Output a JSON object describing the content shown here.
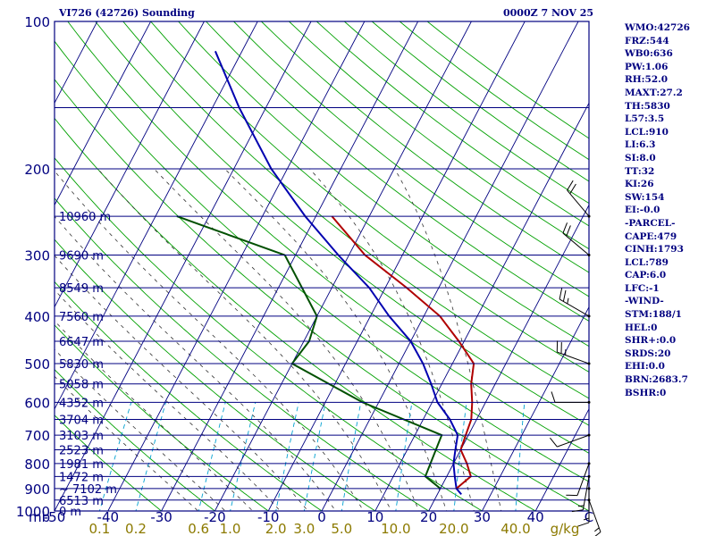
{
  "header": {
    "station": "VI726 (42726) Sounding",
    "time": "0000Z  7 NOV 25"
  },
  "indices": [
    "WMO:42726",
    "FRZ:544",
    "WB0:636",
    "PW:1.06",
    "RH:52.0",
    "MAXT:27.2",
    "TH:5830",
    "L57:3.5",
    "LCL:910",
    "LI:6.3",
    "SI:8.0",
    "TT:32",
    "KI:26",
    "SW:154",
    "EI:-0.0",
    "-PARCEL-",
    "CAPE:479",
    "CINH:1793",
    "LCL:789",
    "CAP:6.0",
    "LFC:-1",
    "-WIND-",
    "STM:188/1",
    "HEL:0",
    "SHR+:0.0",
    "SRDS:20",
    "EHI:0.0",
    "BRN:2683.7",
    "BSHR:0"
  ],
  "colors": {
    "frame": "#000080",
    "isobar": "#000080",
    "isotherm": "#000080",
    "dry_adiabat": "#00a000",
    "moist_adiabat": "#333333",
    "mixing_ratio": "#00a0d0",
    "temperature": "#0000b0",
    "parcel": "#b00000",
    "dewpoint": "#005000",
    "wind_barb": "#000000",
    "label": "#000080",
    "mixing_label": "#8c7a00"
  },
  "chart_data": {
    "type": "line",
    "title": "VI726 (42726) Sounding",
    "subtitle": "0000Z  7 NOV 25",
    "xlabel": "C",
    "ylabel": "mb",
    "xlim": [
      -50,
      50
    ],
    "ylim": [
      1000,
      100
    ],
    "y_scale": "log",
    "pressure_ticks": [
      100,
      200,
      300,
      400,
      500,
      600,
      700,
      800,
      900,
      1000
    ],
    "temperature_ticks": [
      -50,
      -40,
      -30,
      -20,
      -10,
      0,
      10,
      20,
      30,
      40
    ],
    "x_tick_labels": [
      "-50",
      "-40",
      "-30",
      "-20",
      "-10",
      "0",
      "10",
      "20",
      "30",
      "40",
      "C"
    ],
    "mixing_ratio_labels": [
      {
        "label": "0.1",
        "w": 0.1
      },
      {
        "label": "0.2",
        "w": 0.2
      },
      {
        "label": "0.6",
        "w": 0.6
      },
      {
        "label": "1.0",
        "w": 1.0
      },
      {
        "label": "2.0",
        "w": 2.0
      },
      {
        "label": "3.0",
        "w": 3.0
      },
      {
        "label": "5.0",
        "w": 5.0
      },
      {
        "label": "10.0",
        "w": 10.0
      },
      {
        "label": "20.0",
        "w": 20.0
      },
      {
        "label": "40.0",
        "w": 40.0
      }
    ],
    "mixing_ratio_unit": "g/kg",
    "height_labels": [
      {
        "p": 250,
        "label": "10960 m"
      },
      {
        "p": 300,
        "label": "9690 m"
      },
      {
        "p": 350,
        "label": "8549 m"
      },
      {
        "p": 400,
        "label": "7560 m"
      },
      {
        "p": 450,
        "label": "6647 m"
      },
      {
        "p": 500,
        "label": "5830 m"
      },
      {
        "p": 550,
        "label": "5058 m"
      },
      {
        "p": 600,
        "label": "4352 m"
      },
      {
        "p": 650,
        "label": "3704 m"
      },
      {
        "p": 700,
        "label": "3103 m"
      },
      {
        "p": 750,
        "label": "2523 m"
      },
      {
        "p": 800,
        "label": "1981 m"
      },
      {
        "p": 850,
        "label": "1472 m"
      },
      {
        "p": 900,
        "label": "~ 7102 m"
      },
      {
        "p": 950,
        "label": "6513 m"
      },
      {
        "p": 1000,
        "label": "0 m"
      }
    ],
    "series": [
      {
        "key": "temperature",
        "points": [
          [
            925,
            24.5
          ],
          [
            900,
            23.0
          ],
          [
            850,
            21.5
          ],
          [
            800,
            20.0
          ],
          [
            750,
            19.0
          ],
          [
            700,
            18.0
          ],
          [
            650,
            15.0
          ],
          [
            600,
            11.0
          ],
          [
            550,
            8.0
          ],
          [
            500,
            4.5
          ],
          [
            450,
            0.0
          ],
          [
            400,
            -6.5
          ],
          [
            350,
            -13.0
          ],
          [
            300,
            -22.0
          ],
          [
            250,
            -32.0
          ],
          [
            200,
            -43.0
          ],
          [
            150,
            -55.0
          ],
          [
            115,
            -65.0
          ]
        ]
      },
      {
        "key": "parcel",
        "points": [
          [
            900,
            23.0
          ],
          [
            850,
            24.5
          ],
          [
            800,
            22.5
          ],
          [
            750,
            20.0
          ],
          [
            700,
            19.5
          ],
          [
            650,
            19.0
          ],
          [
            600,
            17.5
          ],
          [
            550,
            15.5
          ],
          [
            500,
            14.0
          ],
          [
            450,
            9.0
          ],
          [
            400,
            3.0
          ],
          [
            350,
            -6.0
          ],
          [
            300,
            -17.0
          ],
          [
            250,
            -27.0
          ]
        ]
      },
      {
        "key": "dewpoint",
        "points": [
          [
            900,
            20.0
          ],
          [
            850,
            16.0
          ],
          [
            700,
            15.0
          ],
          [
            600,
            -3.0
          ],
          [
            500,
            -20.0
          ],
          [
            450,
            -19.0
          ],
          [
            400,
            -20.0
          ],
          [
            300,
            -32.0
          ],
          [
            250,
            -56.0
          ]
        ]
      }
    ],
    "wind_barbs": [
      {
        "p": 250,
        "dir": 320,
        "spd": 20
      },
      {
        "p": 300,
        "dir": 310,
        "spd": 20
      },
      {
        "p": 400,
        "dir": 300,
        "spd": 15
      },
      {
        "p": 500,
        "dir": 290,
        "spd": 15
      },
      {
        "p": 600,
        "dir": 270,
        "spd": 10
      },
      {
        "p": 700,
        "dir": 250,
        "spd": 10
      },
      {
        "p": 800,
        "dir": 200,
        "spd": 10
      },
      {
        "p": 850,
        "dir": 190,
        "spd": 5
      },
      {
        "p": 900,
        "dir": 180,
        "spd": 5
      },
      {
        "p": 950,
        "dir": 160,
        "spd": 5
      }
    ],
    "grid": true
  }
}
